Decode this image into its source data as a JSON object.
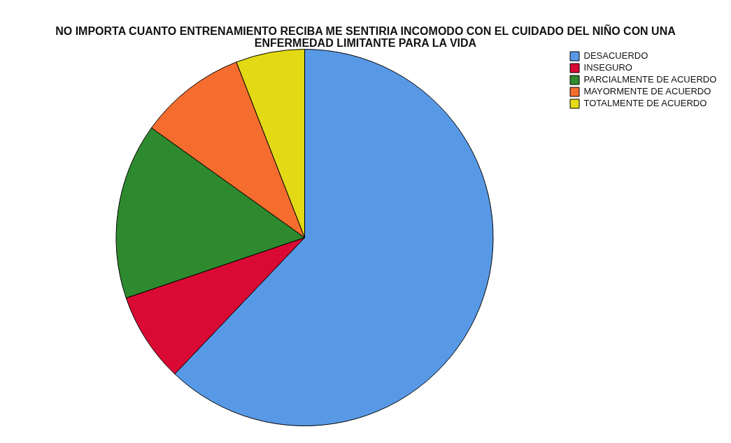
{
  "chart_data": {
    "type": "pie",
    "title": "NO IMPORTA CUANTO ENTRENAMIENTO RECIBA ME SENTIRIA INCOMODO CON EL CUIDADO DEL NIÑO CON UNA ENFERMEDAD LIMITANTE PARA LA VIDA",
    "categories": [
      "DESACUERDO",
      "INSEGURO",
      "PARCIALMENTE DE ACUERDO",
      "MAYORMENTE DE ACUERDO",
      "TOTALMENTE DE ACUERDO"
    ],
    "values": [
      62.1,
      7.7,
      15.1,
      9.2,
      5.9
    ],
    "colors": [
      "#5899e6",
      "#d90a34",
      "#2e8a2e",
      "#f46d2e",
      "#e3d915"
    ],
    "legend": "top right"
  }
}
